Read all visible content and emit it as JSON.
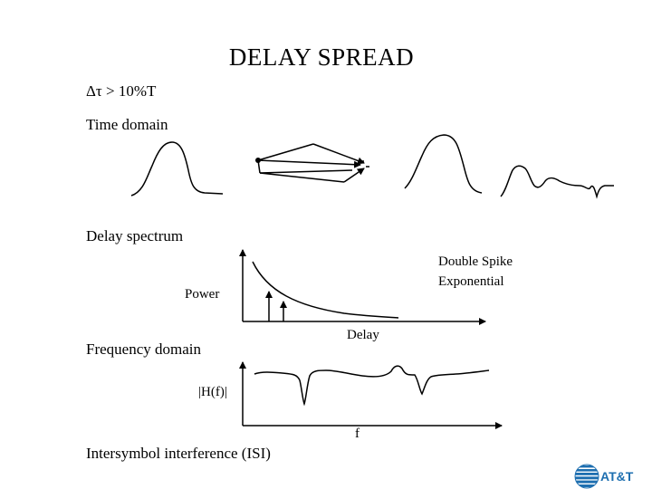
{
  "title": "DELAY SPREAD",
  "condition": "Δτ > 10%T",
  "sections": {
    "time_domain": "Time domain",
    "delay_spectrum": "Delay spectrum",
    "frequency_domain": "Frequency domain",
    "isi": "Intersymbol interference (ISI)"
  },
  "delay_plot": {
    "y_label": "Power",
    "x_label": "Delay",
    "legend": [
      "Double Spike",
      "Exponential"
    ]
  },
  "freq_plot": {
    "y_label": "|H(f)|",
    "x_label": "f"
  },
  "logo": {
    "text": "AT&T",
    "color": "#1e6fb0"
  }
}
